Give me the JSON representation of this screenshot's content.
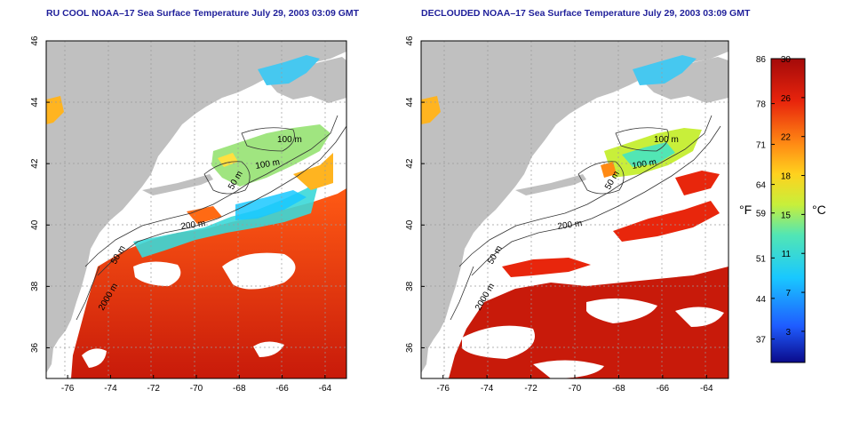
{
  "titles": {
    "left": "RU COOL NOAA–17 Sea Surface Temperature July 29, 2003 03:09 GMT",
    "right": "DECLOUDED NOAA–17 Sea Surface Temperature July 29, 2003 03:09 GMT"
  },
  "map": {
    "lon_range": [
      -77,
      -63
    ],
    "lat_range": [
      35,
      46
    ],
    "lon_ticks": [
      "-76",
      "-74",
      "-72",
      "-70",
      "-68",
      "-66",
      "-64"
    ],
    "lat_ticks": [
      "36",
      "38",
      "40",
      "42",
      "44",
      "46"
    ],
    "grid": "dotted",
    "contour_labels": [
      "100 m",
      "100 m",
      "50 m",
      "200 m",
      "50 m",
      "2000 m"
    ]
  },
  "colorbar": {
    "fahrenheit_ticks": [
      "86",
      "78",
      "71",
      "64",
      "59",
      "51",
      "44",
      "37"
    ],
    "celsius_ticks": [
      "30",
      "26",
      "22",
      "18",
      "15",
      "11",
      "7",
      "3"
    ],
    "fahrenheit_label": "°F",
    "celsius_label": "°C",
    "colors": [
      "#0a0a8a",
      "#1f5cff",
      "#19c8ff",
      "#52e6b4",
      "#c8ef3a",
      "#ffd21e",
      "#ff8a14",
      "#e8240c",
      "#a40a0a"
    ]
  }
}
